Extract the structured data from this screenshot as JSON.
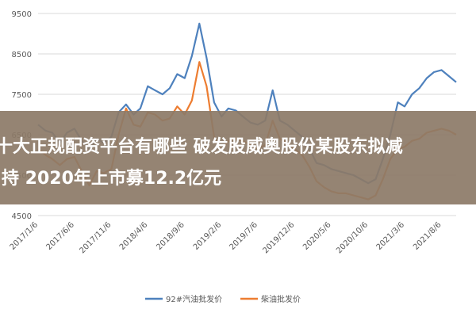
{
  "chart_data": {
    "type": "line",
    "title": "",
    "xlabel": "",
    "ylabel": "",
    "ylim": [
      4500,
      9500
    ],
    "yticks": [
      4500,
      5500,
      6500,
      7500,
      8500,
      9500
    ],
    "xticks": [
      "2017/1/6",
      "2017/6/6",
      "2017/11/6",
      "2018/4/6",
      "2018/9/6",
      "2019/2/6",
      "2019/7/6",
      "2019/12/6",
      "2020/5/6",
      "2020/10/6",
      "2021/3/6",
      "2021/8/6"
    ],
    "grid": "horizontal",
    "legend": "bottom",
    "series": [
      {
        "name": "92#汽油批发价",
        "color": "#4e81bd",
        "points": [
          [
            "2017/1/6",
            6750
          ],
          [
            "2017/2/6",
            6600
          ],
          [
            "2017/3/6",
            6550
          ],
          [
            "2017/4/6",
            6300
          ],
          [
            "2017/5/6",
            6550
          ],
          [
            "2017/6/6",
            6650
          ],
          [
            "2017/7/6",
            6350
          ],
          [
            "2017/8/6",
            6150
          ],
          [
            "2017/9/6",
            6400
          ],
          [
            "2017/10/6",
            6300
          ],
          [
            "2017/11/6",
            6450
          ],
          [
            "2017/12/6",
            7050
          ],
          [
            "2018/1/6",
            7250
          ],
          [
            "2018/2/6",
            7000
          ],
          [
            "2018/3/6",
            7150
          ],
          [
            "2018/4/6",
            7700
          ],
          [
            "2018/5/6",
            7600
          ],
          [
            "2018/6/6",
            7500
          ],
          [
            "2018/7/6",
            7650
          ],
          [
            "2018/8/6",
            8000
          ],
          [
            "2018/9/6",
            7900
          ],
          [
            "2018/10/6",
            8450
          ],
          [
            "2018/11/6",
            9250
          ],
          [
            "2018/12/6",
            8400
          ],
          [
            "2019/1/6",
            7300
          ],
          [
            "2019/2/6",
            6950
          ],
          [
            "2019/3/6",
            7150
          ],
          [
            "2019/4/6",
            7100
          ],
          [
            "2019/5/6",
            6950
          ],
          [
            "2019/6/6",
            6800
          ],
          [
            "2019/7/6",
            6750
          ],
          [
            "2019/8/6",
            6850
          ],
          [
            "2019/9/6",
            7600
          ],
          [
            "2019/10/6",
            6850
          ],
          [
            "2019/11/6",
            6750
          ],
          [
            "2019/12/6",
            6600
          ],
          [
            "2020/1/6",
            6450
          ],
          [
            "2020/2/6",
            6150
          ],
          [
            "2020/3/6",
            5800
          ],
          [
            "2020/4/6",
            5750
          ],
          [
            "2020/5/6",
            5650
          ],
          [
            "2020/6/6",
            5600
          ],
          [
            "2020/7/6",
            5550
          ],
          [
            "2020/8/6",
            5500
          ],
          [
            "2020/9/6",
            5400
          ],
          [
            "2020/10/6",
            5300
          ],
          [
            "2020/11/6",
            5400
          ],
          [
            "2020/12/6",
            5900
          ],
          [
            "2021/1/6",
            6500
          ],
          [
            "2021/2/6",
            7300
          ],
          [
            "2021/3/6",
            7200
          ],
          [
            "2021/4/6",
            7500
          ],
          [
            "2021/5/6",
            7650
          ],
          [
            "2021/6/6",
            7900
          ],
          [
            "2021/7/6",
            8050
          ],
          [
            "2021/8/6",
            8100
          ],
          [
            "2021/9/6",
            7950
          ],
          [
            "2021/10/6",
            7800
          ]
        ]
      },
      {
        "name": "柴油批发价",
        "color": "#ed7d31",
        "points": [
          [
            "2017/1/6",
            6150
          ],
          [
            "2017/2/6",
            6000
          ],
          [
            "2017/3/6",
            5900
          ],
          [
            "2017/4/6",
            5750
          ],
          [
            "2017/5/6",
            5900
          ],
          [
            "2017/6/6",
            5950
          ],
          [
            "2017/7/6",
            5600
          ],
          [
            "2017/8/6",
            5250
          ],
          [
            "2017/9/6",
            5600
          ],
          [
            "2017/10/6",
            5550
          ],
          [
            "2017/11/6",
            5650
          ],
          [
            "2017/12/6",
            6500
          ],
          [
            "2018/1/6",
            7150
          ],
          [
            "2018/2/6",
            6750
          ],
          [
            "2018/3/6",
            6700
          ],
          [
            "2018/4/6",
            7050
          ],
          [
            "2018/5/6",
            7000
          ],
          [
            "2018/6/6",
            6850
          ],
          [
            "2018/7/6",
            6900
          ],
          [
            "2018/8/6",
            7200
          ],
          [
            "2018/9/6",
            7000
          ],
          [
            "2018/10/6",
            7350
          ],
          [
            "2018/11/6",
            8300
          ],
          [
            "2018/12/6",
            7700
          ],
          [
            "2019/1/6",
            6450
          ],
          [
            "2019/2/6",
            6100
          ],
          [
            "2019/3/6",
            6350
          ],
          [
            "2019/4/6",
            6400
          ],
          [
            "2019/5/6",
            6350
          ],
          [
            "2019/6/6",
            6250
          ],
          [
            "2019/7/6",
            6150
          ],
          [
            "2019/8/6",
            6250
          ],
          [
            "2019/9/6",
            6850
          ],
          [
            "2019/10/6",
            6400
          ],
          [
            "2019/11/6",
            6300
          ],
          [
            "2019/12/6",
            6150
          ],
          [
            "2020/1/6",
            6000
          ],
          [
            "2020/2/6",
            5700
          ],
          [
            "2020/3/6",
            5350
          ],
          [
            "2020/4/6",
            5200
          ],
          [
            "2020/5/6",
            5100
          ],
          [
            "2020/6/6",
            5050
          ],
          [
            "2020/7/6",
            5050
          ],
          [
            "2020/8/6",
            5000
          ],
          [
            "2020/9/6",
            4950
          ],
          [
            "2020/10/6",
            4900
          ],
          [
            "2020/11/6",
            5000
          ],
          [
            "2020/12/6",
            5400
          ],
          [
            "2021/1/6",
            5900
          ],
          [
            "2021/2/6",
            6150
          ],
          [
            "2021/3/6",
            6200
          ],
          [
            "2021/4/6",
            6350
          ],
          [
            "2021/5/6",
            6400
          ],
          [
            "2021/6/6",
            6550
          ],
          [
            "2021/7/6",
            6600
          ],
          [
            "2021/8/6",
            6650
          ],
          [
            "2021/9/6",
            6600
          ],
          [
            "2021/10/6",
            6500
          ]
        ]
      }
    ]
  },
  "overlay": {
    "line1": "十大正规配资平台有哪些 破发股威奥股份某股东拟减",
    "line2": "持 2020年上市募12.2亿元"
  }
}
